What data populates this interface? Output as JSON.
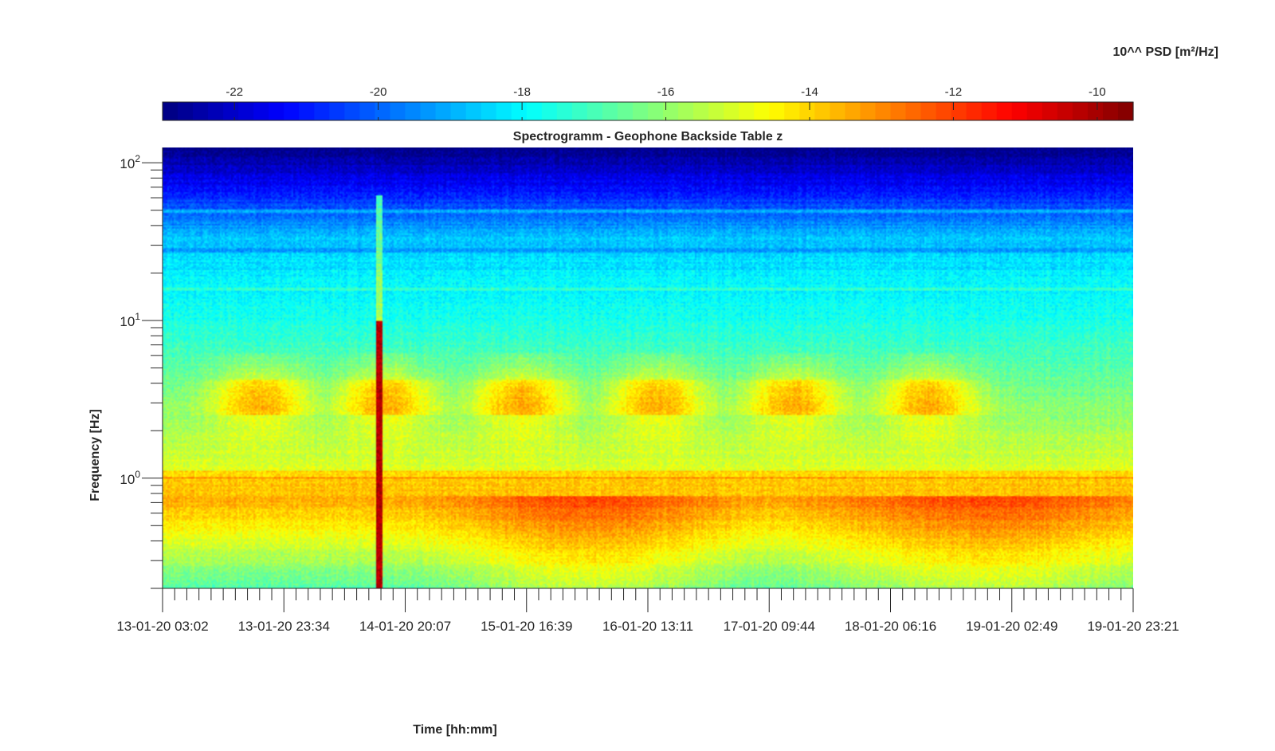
{
  "chart_data": {
    "type": "heatmap",
    "title": "Spectrogramm - Geophone Backside Table z",
    "xlabel": "Time [hh:mm]",
    "ylabel": "Frequency [Hz]",
    "x_ticks": [
      "13-01-20 03:02",
      "13-01-20 23:34",
      "14-01-20 20:07",
      "15-01-20 16:39",
      "16-01-20 13:11",
      "17-01-20 09:44",
      "18-01-20 06:16",
      "19-01-20 02:49",
      "19-01-20 23:21"
    ],
    "x_minor_ticks_per_major": 10,
    "y_scale": "log",
    "y_ticks": [
      {
        "value": 1,
        "base": "10",
        "exp": "0"
      },
      {
        "value": 10,
        "base": "10",
        "exp": "1"
      },
      {
        "value": 100,
        "base": "10",
        "exp": "2"
      }
    ],
    "ylim": [
      0.2,
      125
    ],
    "colorbar": {
      "label": "10^^ PSD [m²/Hz]",
      "range": [
        -23,
        -9.5
      ],
      "ticks": [
        -22,
        -20,
        -18,
        -16,
        -14,
        -12,
        -10
      ],
      "tick_labels": [
        "-22",
        "-20",
        "-18",
        "-16",
        "-14",
        "-12",
        "-10"
      ],
      "colormap": "jet",
      "location": "top"
    },
    "features": [
      {
        "description": "broadband transient",
        "time_fraction": 0.223,
        "freq_max_hz": 60
      },
      {
        "description": "daily activity bursts 3-4 Hz",
        "time_fractions": [
          0.08,
          0.21,
          0.35,
          0.49,
          0.63,
          0.77
        ]
      },
      {
        "description": "persistent line near 1 Hz"
      },
      {
        "description": "strong low-frequency energy below 0.7 Hz"
      }
    ]
  }
}
